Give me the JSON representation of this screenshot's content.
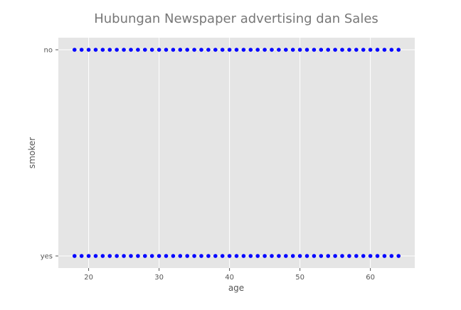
{
  "chart_data": {
    "type": "scatter",
    "title": "Hubungan Newspaper advertising dan Sales",
    "xlabel": "age",
    "ylabel": "smoker",
    "xlim": [
      15.7,
      66.3
    ],
    "x_ticks": [
      20,
      30,
      40,
      50,
      60
    ],
    "y_categories": [
      "yes",
      "no"
    ],
    "grid": true,
    "colors": {
      "background": "#e5e5e5",
      "grid": "#ffffff",
      "points": "#0000ff",
      "title": "#777777",
      "label": "#555555",
      "tick": "#555555"
    },
    "series": [
      {
        "x": [
          18,
          19,
          20,
          21,
          22,
          23,
          24,
          25,
          26,
          27,
          28,
          29,
          30,
          31,
          32,
          33,
          34,
          35,
          36,
          37,
          38,
          39,
          40,
          41,
          42,
          43,
          44,
          45,
          46,
          47,
          48,
          49,
          50,
          51,
          52,
          53,
          54,
          55,
          56,
          57,
          58,
          59,
          60,
          61,
          62,
          63,
          64
        ],
        "y": "no"
      },
      {
        "x": [
          18,
          19,
          20,
          21,
          22,
          23,
          24,
          25,
          26,
          27,
          28,
          29,
          30,
          31,
          32,
          33,
          34,
          35,
          36,
          37,
          38,
          39,
          40,
          41,
          42,
          43,
          44,
          45,
          46,
          47,
          48,
          49,
          50,
          51,
          52,
          53,
          54,
          55,
          56,
          57,
          58,
          59,
          60,
          61,
          62,
          63,
          64
        ],
        "y": "yes"
      }
    ]
  }
}
